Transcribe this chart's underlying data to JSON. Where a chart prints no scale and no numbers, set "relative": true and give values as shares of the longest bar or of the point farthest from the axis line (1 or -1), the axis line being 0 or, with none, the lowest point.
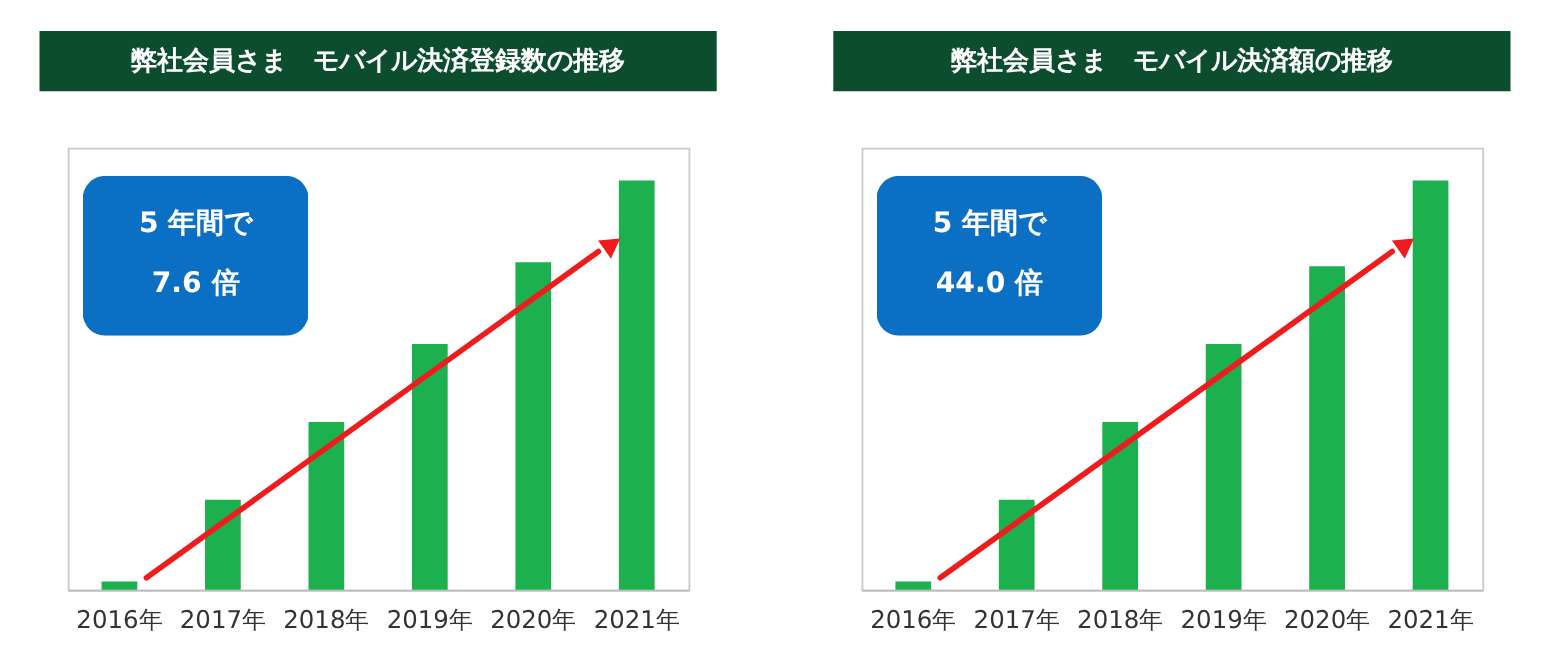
{
  "chart_data": [
    {
      "type": "bar",
      "title": "弊社会員さま　モバイル決済登録数の推移",
      "categories": [
        "2016年",
        "2017年",
        "2018年",
        "2019年",
        "2020年",
        "2021年"
      ],
      "values": [
        0.02,
        0.22,
        0.41,
        0.6,
        0.8,
        1.0
      ],
      "color": "#1db04f",
      "relative": true,
      "grid": false,
      "legend": false,
      "annotations": [
        "5 年間で",
        "7.6 倍"
      ]
    },
    {
      "type": "bar",
      "title": "弊社会員さま　モバイル決済額の推移",
      "categories": [
        "2016年",
        "2017年",
        "2018年",
        "2019年",
        "2020年",
        "2021年"
      ],
      "values": [
        0.02,
        0.22,
        0.41,
        0.6,
        0.79,
        1.0
      ],
      "color": "#1db04f",
      "relative": true,
      "grid": false,
      "legend": false,
      "annotations": [
        "5 年間で",
        "44.0 倍"
      ]
    }
  ]
}
